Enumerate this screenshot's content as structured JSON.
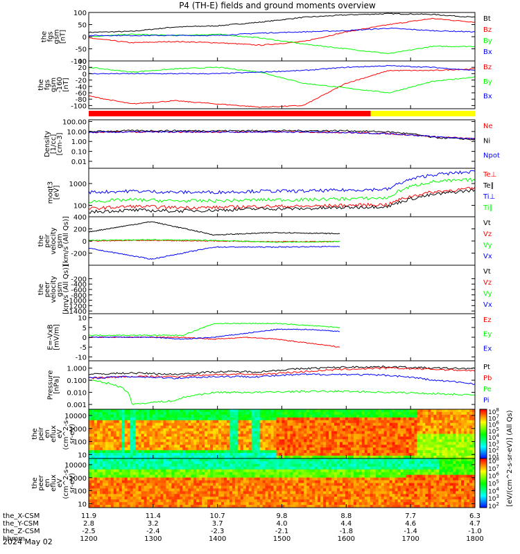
{
  "title": "P4 (TH-E) fields and ground moments overview",
  "date_label": "2024 May 02",
  "colors": {
    "black": "#000000",
    "red": "#ff0000",
    "green": "#00ff00",
    "blue": "#0000ff",
    "yellow": "#ffff00"
  },
  "chart_data": {
    "type": "line",
    "time_axis": {
      "hhmm_ticks": [
        "1200",
        "1300",
        "1400",
        "1500",
        "1600",
        "1700",
        "1800"
      ],
      "hhmm_label": "hhmm",
      "orbit_rows": [
        {
          "label": "the_X-CSM",
          "values": [
            "11.9",
            "11.4",
            "10.7",
            "9.8",
            "8.8",
            "7.7",
            "6.3"
          ]
        },
        {
          "label": "the_Y-CSM",
          "values": [
            "2.8",
            "3.2",
            "3.7",
            "4.0",
            "4.4",
            "4.6",
            "4.7"
          ]
        },
        {
          "label": "the_Z-CSM",
          "values": [
            "-2.5",
            "-2.4",
            "-2.3",
            "-2.1",
            "-1.8",
            "-1.4",
            "-1.0"
          ]
        }
      ]
    },
    "panels": [
      {
        "id": "fgs_gsm",
        "ylabel": [
          "the",
          "fgs",
          "gsm",
          "[nT]"
        ],
        "scale": "linear",
        "ylim": [
          -100,
          100
        ],
        "ticks": [
          "100",
          "50",
          "0",
          "-50",
          "-100"
        ],
        "series": [
          {
            "name": "Bt",
            "color": "black",
            "values": [
              18,
              22,
              40,
              45,
              60,
              80,
              90,
              95,
              92,
              80
            ]
          },
          {
            "name": "Bz",
            "color": "red",
            "values": [
              -5,
              -25,
              -20,
              -25,
              -35,
              -20,
              20,
              50,
              75,
              60
            ]
          },
          {
            "name": "By",
            "color": "green",
            "values": [
              0,
              10,
              5,
              10,
              -5,
              -30,
              -50,
              -70,
              -40,
              -40
            ]
          },
          {
            "name": "Bx",
            "color": "blue",
            "values": [
              5,
              5,
              5,
              5,
              15,
              20,
              25,
              35,
              25,
              20
            ]
          }
        ]
      },
      {
        "id": "fgs_sm",
        "ylabel": [
          "the",
          "fgs",
          "gsm",
          "-160",
          "[nT]"
        ],
        "scale": "linear",
        "ylim": [
          -110,
          40
        ],
        "ticks": [
          "40",
          "20",
          "0",
          "-20",
          "-40",
          "-60",
          "-80",
          "-100"
        ],
        "series": [
          {
            "name": "Bz",
            "color": "red",
            "values": [
              -70,
              -95,
              -85,
              -95,
              -105,
              -100,
              -30,
              10,
              10,
              15
            ]
          },
          {
            "name": "By",
            "color": "green",
            "values": [
              20,
              5,
              15,
              20,
              5,
              -30,
              -45,
              -60,
              -25,
              -10
            ]
          },
          {
            "name": "Bx",
            "color": "blue",
            "values": [
              0,
              0,
              0,
              0,
              5,
              10,
              20,
              25,
              20,
              10
            ]
          }
        ]
      },
      {
        "id": "density",
        "ylabel": [
          "Density",
          "[1/cc]",
          "[cm-3]"
        ],
        "scale": "log",
        "ylim": [
          0.002,
          150
        ],
        "ticks": [
          "100.00",
          "10.00",
          "1.00",
          "0.10",
          "0.01"
        ],
        "series": [
          {
            "name": "Ne",
            "color": "red",
            "values": [
              8,
              9,
              9,
              9,
              9,
              9,
              8,
              6,
              3,
              1.8
            ]
          },
          {
            "name": "Ni",
            "color": "black",
            "values": [
              10,
              12,
              12,
              12,
              12,
              12,
              12,
              9,
              2.5,
              1.5
            ]
          },
          {
            "name": "Npot",
            "color": "blue",
            "values": [
              8,
              9,
              9,
              9,
              9,
              9,
              8,
              6,
              3,
              1.8
            ]
          }
        ]
      },
      {
        "id": "temperature",
        "ylabel": [
          "moqt3",
          "[eV]"
        ],
        "scale": "log",
        "ylim": [
          30,
          5000
        ],
        "ticks": [
          "1000",
          "100"
        ],
        "series": [
          {
            "name": "Te⊥",
            "color": "red",
            "values": [
              70,
              90,
              80,
              80,
              90,
              90,
              100,
              110,
              400,
              600
            ]
          },
          {
            "name": "Te∥",
            "color": "black",
            "values": [
              50,
              60,
              55,
              60,
              70,
              70,
              80,
              90,
              300,
              500
            ]
          },
          {
            "name": "Ti⊥",
            "color": "blue",
            "values": [
              400,
              450,
              400,
              400,
              450,
              450,
              500,
              550,
              2500,
              3500
            ]
          },
          {
            "name": "Ti∥",
            "color": "green",
            "values": [
              150,
              180,
              160,
              160,
              180,
              180,
              200,
              220,
              1200,
              1500
            ]
          }
        ]
      },
      {
        "id": "peir_velocity",
        "ylabel": [
          "the",
          "peir",
          "velocity",
          "gsm",
          "[km/s (All Qs)]"
        ],
        "scale": "linear",
        "ylim": [
          -400,
          400
        ],
        "ticks": [
          "400",
          "200",
          "0",
          "-200"
        ],
        "series": [
          {
            "name": "Vt",
            "color": "black",
            "values": [
              150,
              320,
              100,
              140,
              120
            ]
          },
          {
            "name": "Vz",
            "color": "red",
            "values": [
              0,
              10,
              0,
              -10,
              -10
            ]
          },
          {
            "name": "Vy",
            "color": "green",
            "values": [
              10,
              20,
              10,
              -20,
              -10
            ]
          },
          {
            "name": "Vx",
            "color": "blue",
            "values": [
              -120,
              -300,
              -100,
              -100,
              -90
            ]
          }
        ]
      },
      {
        "id": "peer_velocity",
        "ylabel": [
          "the",
          "peer",
          "velocity",
          "gsm",
          "[km/s (All Qs)]"
        ],
        "scale": "linear",
        "ylim": [
          -1500,
          300
        ],
        "ticks": [
          "-200",
          "-400",
          "-600",
          "-800",
          "-1000",
          "-1200",
          "-1400"
        ],
        "series": [
          {
            "name": "Vt",
            "color": "black",
            "values": []
          },
          {
            "name": "Vz",
            "color": "red",
            "values": []
          },
          {
            "name": "Vy",
            "color": "green",
            "values": []
          },
          {
            "name": "Vx",
            "color": "blue",
            "values": []
          }
        ]
      },
      {
        "id": "efield",
        "ylabel": [
          "E=-VxB",
          "[mV/m]"
        ],
        "scale": "linear",
        "ylim": [
          -12,
          12
        ],
        "ticks": [
          "10",
          "5",
          "0",
          "-5",
          "-10"
        ],
        "series": [
          {
            "name": "Ez",
            "color": "red",
            "values": [
              0,
              0,
              0,
              0,
              -1,
              0,
              -1,
              -3,
              -5
            ]
          },
          {
            "name": "Ey",
            "color": "green",
            "values": [
              1,
              1,
              1,
              1,
              7,
              7,
              7,
              6,
              5
            ]
          },
          {
            "name": "Ex",
            "color": "blue",
            "values": [
              0,
              0,
              0,
              -1,
              0,
              2,
              4,
              4,
              3
            ]
          }
        ]
      },
      {
        "id": "pressure",
        "ylabel": [
          "Pressure",
          "[nPa]"
        ],
        "scale": "log",
        "ylim": [
          0.0004,
          4
        ],
        "ticks": [
          "1.000",
          "0.100",
          "0.010",
          "0.001"
        ],
        "series": [
          {
            "name": "Pt",
            "color": "black",
            "values": [
              0.3,
              0.4,
              0.3,
              0.5,
              0.5,
              0.9,
              1.2,
              1.3,
              1.0,
              0.9
            ]
          },
          {
            "name": "Pb",
            "color": "red",
            "values": [
              0.15,
              0.2,
              0.2,
              0.3,
              0.3,
              0.5,
              0.8,
              1.0,
              0.8,
              0.6
            ]
          },
          {
            "name": "Pe",
            "color": "green",
            "values": [
              0.1,
              0.001,
              0.002,
              0.01,
              0.01,
              0.012,
              0.012,
              0.01,
              0.008,
              0.006
            ]
          },
          {
            "name": "Pi",
            "color": "blue",
            "values": [
              0.15,
              0.2,
              0.15,
              0.2,
              0.2,
              0.3,
              0.3,
              0.25,
              0.1,
              0.05
            ]
          }
        ]
      },
      {
        "id": "peir_eflux",
        "type": "heatmap",
        "ylabel": [
          "the",
          "peir",
          "en",
          "eflux",
          "eV",
          "(cm^2-s-",
          "sr-eV)"
        ],
        "scale": "log",
        "ylim": [
          5,
          30000
        ],
        "ticks": [
          "10000",
          "1000",
          "100",
          "10"
        ]
      },
      {
        "id": "peer_eflux",
        "type": "heatmap",
        "ylabel": [
          "the",
          "peer",
          "en",
          "eflux",
          "eV",
          "(cm^2-s-",
          "sr-eV)"
        ],
        "scale": "log",
        "ylim": [
          5,
          30000
        ],
        "ticks": [
          "10000",
          "1000",
          "100",
          "10"
        ]
      }
    ],
    "colorbar": {
      "unit_label": "[eV/(cm^2-s-sr-eV)] (All Qs)",
      "ticks_upper": [
        "10^8",
        "10^7",
        "10^6",
        "10^5",
        "10^4",
        "10^3",
        "10^2",
        "10^1"
      ],
      "ticks_lower": [
        "10^8",
        "10^7",
        "10^6",
        "10^5",
        "10^4",
        "10^3",
        "10^2"
      ]
    },
    "mode_bar": {
      "segments": [
        {
          "color": "red",
          "fraction": 0.73
        },
        {
          "color": "yellow",
          "fraction": 0.27
        }
      ]
    }
  }
}
